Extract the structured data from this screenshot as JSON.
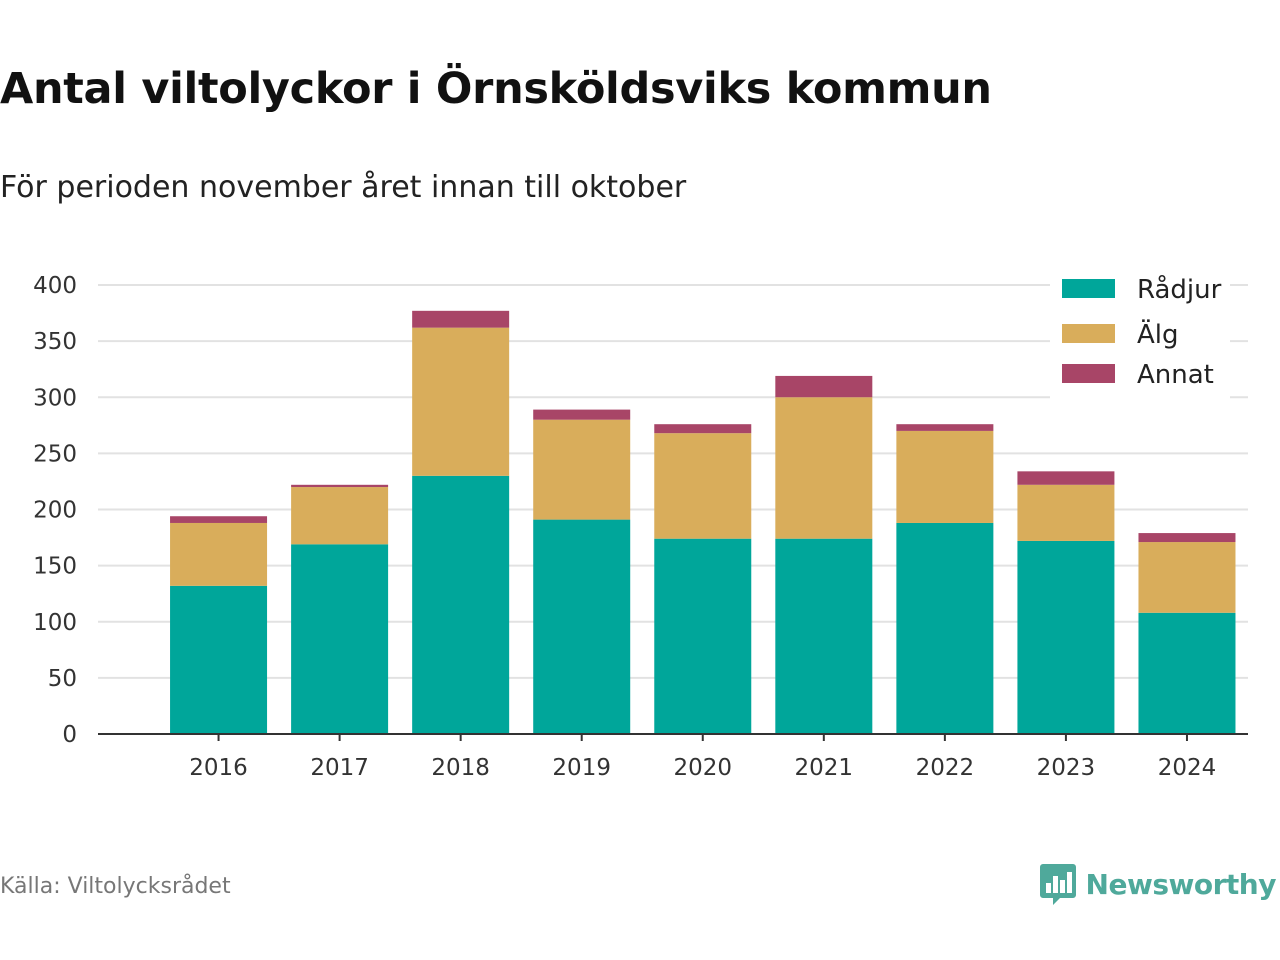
{
  "title": "Antal viltolyckor i Örnsköldsviks kommun",
  "subtitle": "För perioden november året innan till oktober",
  "source": "Källa: Viltolycksrådet",
  "brand": {
    "name": "Newsworthy",
    "icon": "bar-chart-speech-bubble-icon",
    "color": "#4fa99b"
  },
  "chart_data": {
    "type": "bar",
    "stacked": true,
    "categories": [
      "2016",
      "2017",
      "2018",
      "2019",
      "2020",
      "2021",
      "2022",
      "2023",
      "2024"
    ],
    "series": [
      {
        "name": "Rådjur",
        "color": "#00a69a",
        "values": [
          132,
          169,
          230,
          191,
          174,
          174,
          188,
          172,
          108
        ]
      },
      {
        "name": "Älg",
        "color": "#d9ad5b",
        "values": [
          56,
          51,
          132,
          89,
          94,
          126,
          82,
          50,
          63
        ]
      },
      {
        "name": "Annat",
        "color": "#a84567",
        "values": [
          6,
          2,
          15,
          9,
          8,
          19,
          6,
          12,
          8
        ]
      }
    ],
    "ylim": [
      0,
      400
    ],
    "yticks": [
      0,
      50,
      100,
      150,
      200,
      250,
      300,
      350,
      400
    ],
    "grid": true,
    "legend_position": "top-right",
    "xlabel": "",
    "ylabel": ""
  }
}
